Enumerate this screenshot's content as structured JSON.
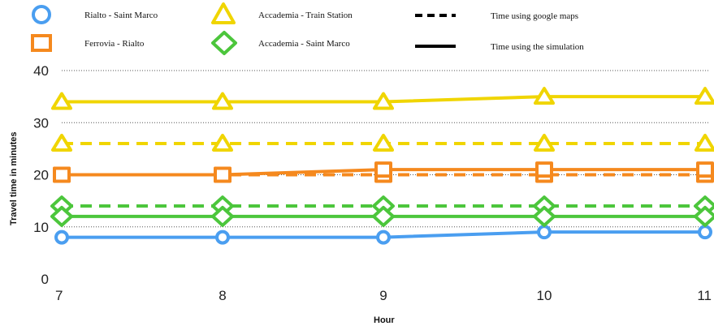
{
  "chart_data": {
    "type": "line",
    "xlabel": "Hour",
    "ylabel": "Travel time in minutes",
    "x": [
      7,
      8,
      9,
      10,
      11
    ],
    "xticks": [
      "7",
      "8",
      "9",
      "10",
      "11"
    ],
    "yticks": [
      "0",
      "10",
      "20",
      "30",
      "40"
    ],
    "ylim": [
      0,
      40
    ],
    "grid": "horizontal-dotted",
    "legend": {
      "placement": "top",
      "routes": [
        {
          "name": "Rialto - Saint Marco",
          "marker": "circle",
          "color": "#4A9EF0"
        },
        {
          "name": "Ferrovia - Rialto",
          "marker": "square",
          "color": "#F5891E"
        },
        {
          "name": "Accademia - Train Station",
          "marker": "triangle",
          "color": "#F0D500"
        },
        {
          "name": "Accademia - Saint Marco",
          "marker": "diamond",
          "color": "#4CC63C"
        }
      ],
      "styles": [
        {
          "name": "Time using google maps",
          "dash": "dashed"
        },
        {
          "name": "Time using the simulation",
          "dash": "solid"
        }
      ]
    },
    "series": [
      {
        "route": "Rialto - Saint Marco",
        "source": "simulation",
        "marker": "circle",
        "color": "#4A9EF0",
        "values": [
          8,
          8,
          8,
          9,
          9
        ]
      },
      {
        "route": "Ferrovia - Rialto",
        "source": "google maps",
        "marker": "square",
        "color": "#F5891E",
        "values": [
          20,
          20,
          20,
          20,
          20
        ]
      },
      {
        "route": "Ferrovia - Rialto",
        "source": "simulation",
        "marker": "square",
        "color": "#F5891E",
        "values": [
          20,
          20,
          21,
          21,
          21
        ]
      },
      {
        "route": "Accademia - Train Station",
        "source": "google maps",
        "marker": "triangle",
        "color": "#F0D500",
        "values": [
          26,
          26,
          26,
          26,
          26
        ]
      },
      {
        "route": "Accademia - Train Station",
        "source": "simulation",
        "marker": "triangle",
        "color": "#F0D500",
        "values": [
          34,
          34,
          34,
          35,
          35
        ]
      },
      {
        "route": "Accademia - Saint Marco",
        "source": "google maps",
        "marker": "diamond",
        "color": "#4CC63C",
        "values": [
          14,
          14,
          14,
          14,
          14
        ]
      },
      {
        "route": "Accademia - Saint Marco",
        "source": "simulation",
        "marker": "diamond",
        "color": "#4CC63C",
        "values": [
          12,
          12,
          12,
          12,
          12
        ]
      }
    ]
  }
}
